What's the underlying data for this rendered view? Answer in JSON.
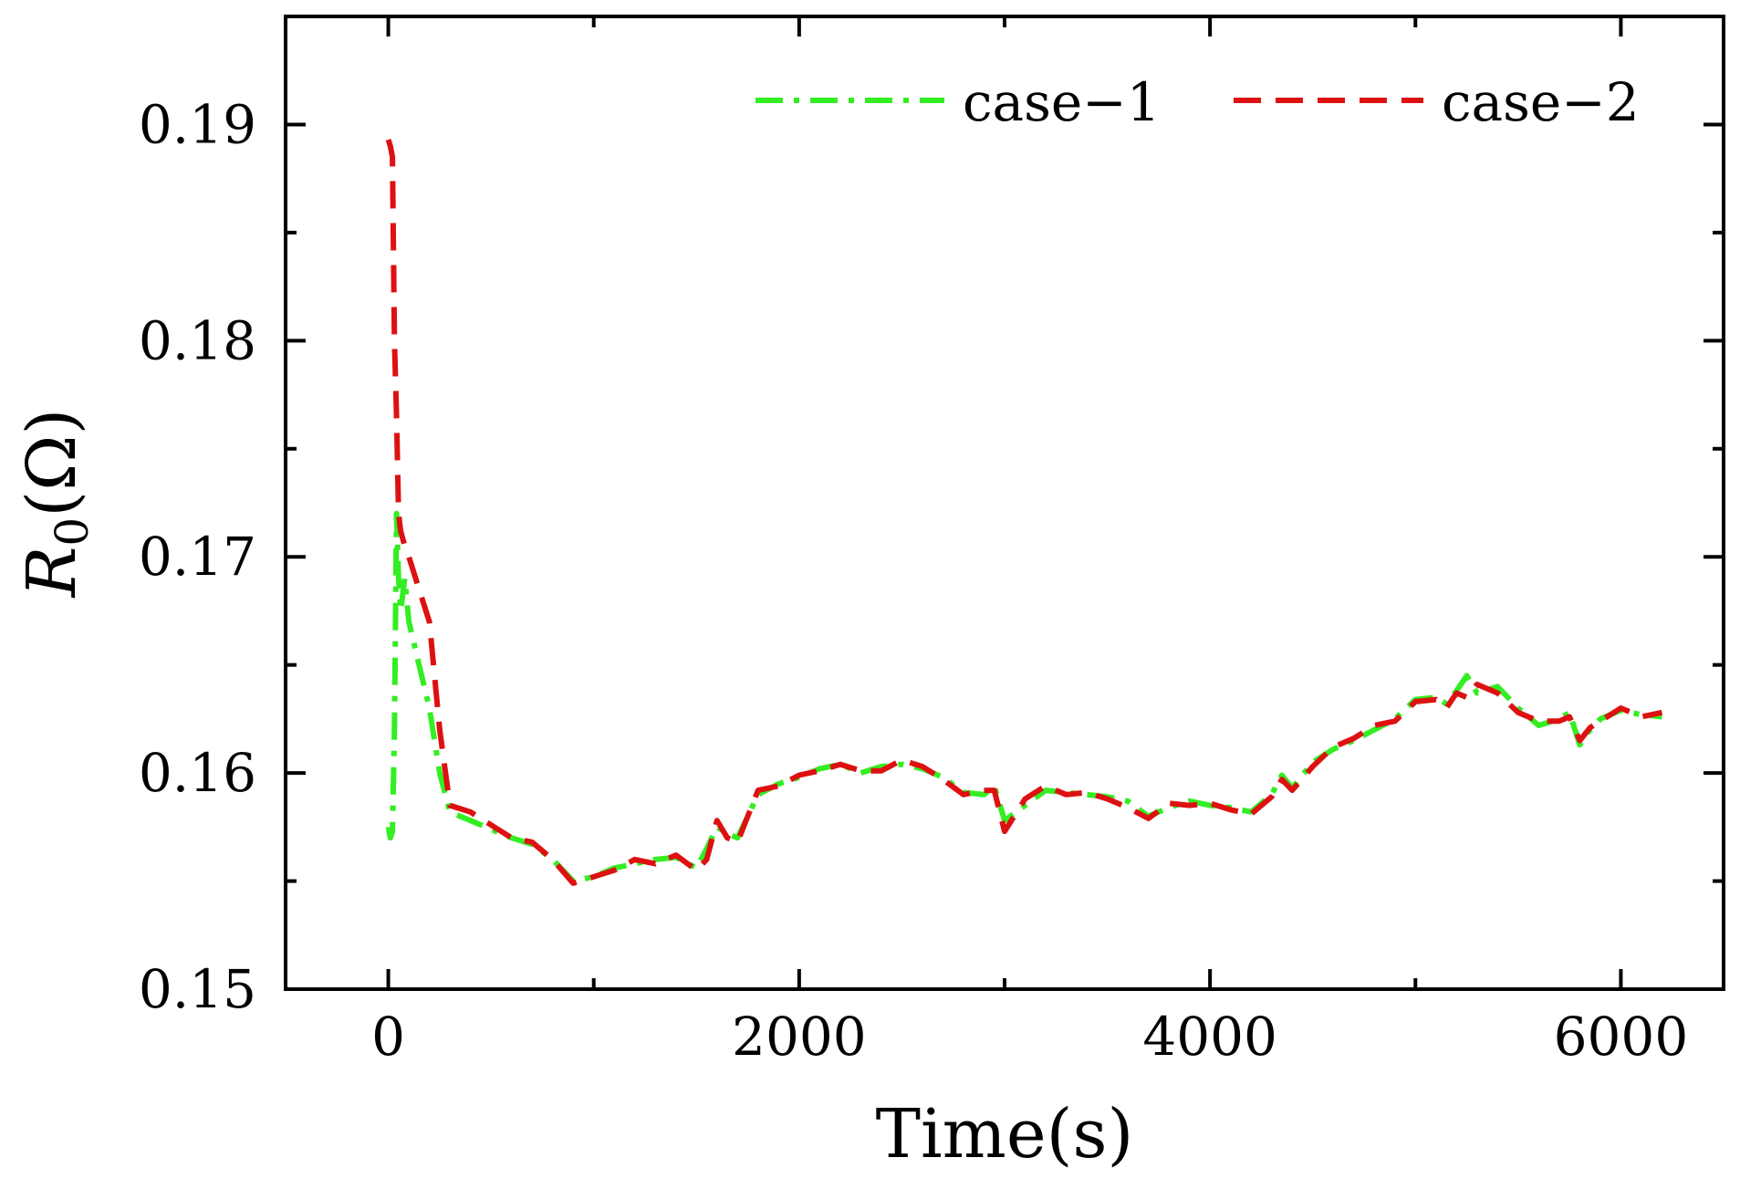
{
  "chart_data": {
    "type": "line",
    "title": "",
    "xlabel": "Time(s)",
    "ylabel_main": "R",
    "ylabel_sub": "0",
    "ylabel_unit": "(Ω)",
    "xlim": [
      -500,
      6500
    ],
    "ylim": [
      0.15,
      0.195
    ],
    "xticks": [
      0,
      2000,
      4000,
      6000
    ],
    "xtick_labels": [
      "0",
      "2000",
      "4000",
      "6000"
    ],
    "yticks": [
      0.15,
      0.16,
      0.17,
      0.18,
      0.19
    ],
    "ytick_labels": [
      "0.15",
      "0.16",
      "0.17",
      "0.18",
      "0.19"
    ],
    "grid": false,
    "legend_position": "top-right",
    "series": [
      {
        "name": "case−1",
        "color": "#33ee22",
        "dash": "dashdot",
        "x": [
          0,
          10,
          20,
          30,
          40,
          50,
          60,
          80,
          100,
          150,
          200,
          250,
          300,
          400,
          500,
          600,
          700,
          800,
          900,
          1000,
          1100,
          1200,
          1300,
          1400,
          1500,
          1550,
          1600,
          1650,
          1700,
          1800,
          1900,
          2000,
          2100,
          2200,
          2300,
          2400,
          2500,
          2600,
          2700,
          2800,
          2900,
          2950,
          3000,
          3100,
          3200,
          3300,
          3400,
          3500,
          3600,
          3700,
          3800,
          3900,
          4000,
          4100,
          4200,
          4300,
          4350,
          4400,
          4500,
          4600,
          4700,
          4800,
          4900,
          5000,
          5100,
          5150,
          5200,
          5250,
          5300,
          5400,
          5500,
          5600,
          5700,
          5750,
          5800,
          5850,
          5900,
          6000,
          6100,
          6200
        ],
        "values": [
          0.1575,
          0.157,
          0.1573,
          0.162,
          0.172,
          0.169,
          0.1675,
          0.169,
          0.167,
          0.165,
          0.163,
          0.16,
          0.1582,
          0.1578,
          0.1574,
          0.157,
          0.1567,
          0.156,
          0.155,
          0.1552,
          0.1556,
          0.1558,
          0.156,
          0.1561,
          0.1556,
          0.1565,
          0.1575,
          0.1572,
          0.157,
          0.159,
          0.1595,
          0.1598,
          0.1602,
          0.1604,
          0.16,
          0.1603,
          0.1604,
          0.1602,
          0.1598,
          0.1591,
          0.159,
          0.1594,
          0.1578,
          0.1585,
          0.1592,
          0.1591,
          0.159,
          0.1589,
          0.1587,
          0.158,
          0.1584,
          0.1587,
          0.1585,
          0.1584,
          0.1582,
          0.159,
          0.1599,
          0.1593,
          0.1605,
          0.1611,
          0.1615,
          0.162,
          0.1625,
          0.1634,
          0.1635,
          0.1632,
          0.1638,
          0.1645,
          0.1637,
          0.164,
          0.163,
          0.1622,
          0.1625,
          0.1628,
          0.1613,
          0.162,
          0.1625,
          0.1629,
          0.1627,
          0.1626
        ]
      },
      {
        "name": "case−2",
        "color": "#dd1111",
        "dash": "dashed",
        "x": [
          0,
          10,
          20,
          30,
          40,
          50,
          60,
          80,
          100,
          150,
          200,
          250,
          300,
          400,
          500,
          600,
          700,
          800,
          900,
          1000,
          1100,
          1200,
          1300,
          1400,
          1500,
          1550,
          1600,
          1650,
          1700,
          1800,
          1900,
          2000,
          2100,
          2200,
          2300,
          2400,
          2500,
          2600,
          2700,
          2800,
          2900,
          2950,
          3000,
          3100,
          3200,
          3300,
          3400,
          3500,
          3600,
          3700,
          3800,
          3900,
          4000,
          4100,
          4200,
          4300,
          4350,
          4400,
          4500,
          4600,
          4700,
          4800,
          4900,
          5000,
          5100,
          5150,
          5200,
          5250,
          5300,
          5400,
          5500,
          5600,
          5700,
          5750,
          5800,
          5850,
          5900,
          6000,
          6100,
          6200
        ],
        "values": [
          0.1893,
          0.189,
          0.1885,
          0.18,
          0.1765,
          0.172,
          0.1712,
          0.1705,
          0.17,
          0.1685,
          0.167,
          0.162,
          0.1585,
          0.1582,
          0.1576,
          0.157,
          0.1568,
          0.156,
          0.1549,
          0.1552,
          0.1555,
          0.156,
          0.1558,
          0.1562,
          0.1555,
          0.156,
          0.1578,
          0.157,
          0.1568,
          0.1592,
          0.1594,
          0.1599,
          0.1601,
          0.1604,
          0.1601,
          0.1601,
          0.1606,
          0.1603,
          0.1597,
          0.159,
          0.1592,
          0.1592,
          0.1573,
          0.1588,
          0.1594,
          0.159,
          0.1591,
          0.1588,
          0.1584,
          0.1579,
          0.1586,
          0.1585,
          0.1586,
          0.1583,
          0.1581,
          0.1589,
          0.1597,
          0.1592,
          0.1603,
          0.1612,
          0.1616,
          0.1622,
          0.1624,
          0.1633,
          0.1634,
          0.163,
          0.1637,
          0.1635,
          0.1641,
          0.1637,
          0.1628,
          0.1624,
          0.1624,
          0.1626,
          0.1615,
          0.1621,
          0.1624,
          0.163,
          0.1626,
          0.1628
        ]
      }
    ]
  }
}
